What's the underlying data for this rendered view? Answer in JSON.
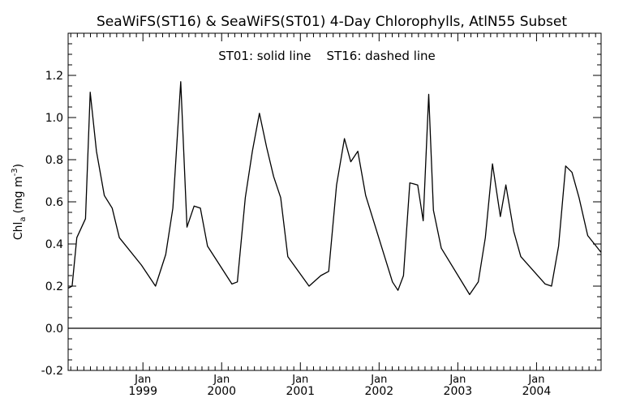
{
  "chart_data": {
    "type": "line",
    "title": "SeaWiFS(ST16) & SeaWiFS(ST01) 4-Day Chlorophylls, AtlN55 Subset",
    "annotation": "ST01: solid line    ST16: dashed line",
    "ylabel_main": "Chl",
    "ylabel_sub": "a",
    "ylabel_units": "(mg m",
    "ylabel_exp": "-3",
    "ylabel_close": ")",
    "ylim": [
      -0.2,
      1.4
    ],
    "xlim": [
      1998.05,
      2004.82
    ],
    "yticks": [
      -0.2,
      0.0,
      0.2,
      0.4,
      0.6,
      0.8,
      1.0,
      1.2
    ],
    "ytick_labels": [
      "-0.2",
      "0.0",
      "0.2",
      "0.4",
      "0.6",
      "0.8",
      "1.0",
      "1.2"
    ],
    "xticks": [
      {
        "x": 1999.0,
        "month": "Jan",
        "year": "1999"
      },
      {
        "x": 2000.0,
        "month": "Jan",
        "year": "2000"
      },
      {
        "x": 2001.0,
        "month": "Jan",
        "year": "2001"
      },
      {
        "x": 2002.0,
        "month": "Jan",
        "year": "2002"
      },
      {
        "x": 2003.0,
        "month": "Jan",
        "year": "2003"
      },
      {
        "x": 2004.0,
        "month": "Jan",
        "year": "2004"
      }
    ],
    "zero_line": 0.0,
    "series": [
      {
        "style": "solid",
        "x": [
          1998.05,
          1998.1,
          1998.16,
          1998.27,
          1998.33,
          1998.41,
          1998.51,
          1998.61,
          1998.7,
          1998.98,
          1999.16,
          1999.29,
          1999.38,
          1999.48,
          1999.56,
          1999.65,
          1999.73,
          1999.82,
          2000.13,
          2000.2,
          2000.3,
          2000.39,
          2000.48,
          2000.57,
          2000.66,
          2000.75,
          2000.84,
          2001.11,
          2001.26,
          2001.36,
          2001.46,
          2001.56,
          2001.64,
          2001.73,
          2001.83,
          2002.17,
          2002.24,
          2002.31,
          2002.39,
          2002.49,
          2002.56,
          2002.63,
          2002.69,
          2002.79,
          2003.15,
          2003.26,
          2003.35,
          2003.44,
          2003.54,
          2003.61,
          2003.71,
          2003.8,
          2004.11,
          2004.19,
          2004.28,
          2004.37,
          2004.45,
          2004.54,
          2004.65,
          2004.82
        ],
        "values": [
          0.19,
          0.2,
          0.43,
          0.52,
          1.12,
          0.84,
          0.63,
          0.57,
          0.43,
          0.3,
          0.2,
          0.35,
          0.57,
          1.17,
          0.48,
          0.58,
          0.57,
          0.39,
          0.21,
          0.22,
          0.62,
          0.84,
          1.02,
          0.86,
          0.72,
          0.62,
          0.34,
          0.2,
          0.25,
          0.27,
          0.68,
          0.9,
          0.79,
          0.84,
          0.63,
          0.22,
          0.18,
          0.25,
          0.69,
          0.68,
          0.51,
          1.11,
          0.56,
          0.38,
          0.16,
          0.22,
          0.43,
          0.78,
          0.53,
          0.68,
          0.46,
          0.34,
          0.21,
          0.2,
          0.39,
          0.77,
          0.74,
          0.62,
          0.44,
          0.36
        ]
      }
    ]
  }
}
